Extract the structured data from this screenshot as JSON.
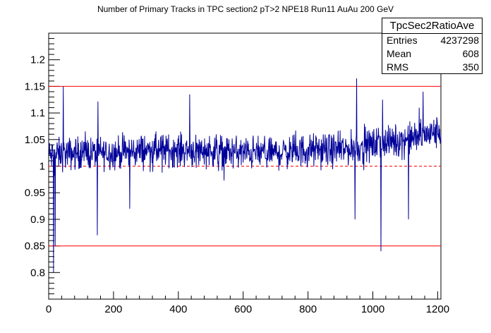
{
  "chart_data": {
    "type": "line",
    "title": "Number of Primary Tracks in TPC section2 pT>2 NPE18 Run11 AuAu 200 GeV",
    "xlabel": "",
    "ylabel": "",
    "xlim": [
      0,
      1210
    ],
    "ylim": [
      0.75,
      1.25
    ],
    "xticks": [
      0,
      200,
      400,
      600,
      800,
      1000,
      1200
    ],
    "xtick_labels": [
      "0",
      "200",
      "400",
      "600",
      "800",
      "1000",
      "1200"
    ],
    "yticks": [
      0.8,
      0.85,
      0.9,
      0.95,
      1.0,
      1.05,
      1.1,
      1.15,
      1.2
    ],
    "ytick_labels": [
      "0.8",
      "0.85",
      "0.9",
      "0.95",
      "1",
      "1.05",
      "1.1",
      "1.15",
      "1.2"
    ],
    "reference_lines": [
      {
        "y": 1.15,
        "style": "solid",
        "color": "#ff0000"
      },
      {
        "y": 0.85,
        "style": "solid",
        "color": "#ff0000"
      },
      {
        "y": 1.0,
        "style": "dashed",
        "color": "#ff0000"
      }
    ],
    "series": [
      {
        "color": "#000099",
        "trend_x": [
          0,
          100,
          200,
          300,
          400,
          500,
          600,
          700,
          800,
          900,
          1000,
          1100,
          1210
        ],
        "trend_y": [
          1.02,
          1.025,
          1.025,
          1.03,
          1.03,
          1.03,
          1.025,
          1.025,
          1.03,
          1.03,
          1.04,
          1.05,
          1.065
        ],
        "spread": 0.015,
        "spikes": [
          {
            "x": 15,
            "y": 0.8
          },
          {
            "x": 20,
            "y": 0.85
          },
          {
            "x": 45,
            "y": 1.15
          },
          {
            "x": 150,
            "y": 0.87
          },
          {
            "x": 250,
            "y": 0.92
          },
          {
            "x": 435,
            "y": 1.135
          },
          {
            "x": 945,
            "y": 0.9
          },
          {
            "x": 950,
            "y": 1.165
          },
          {
            "x": 1025,
            "y": 0.84
          },
          {
            "x": 1030,
            "y": 1.125
          },
          {
            "x": 1110,
            "y": 0.9
          },
          {
            "x": 1155,
            "y": 1.14
          }
        ]
      }
    ],
    "grid": false,
    "legend": "top-right"
  },
  "stats_box": {
    "name": "TpcSec2RatioAve",
    "rows": [
      {
        "label": "Entries",
        "value": "4237298"
      },
      {
        "label": "Mean",
        "value": "608"
      },
      {
        "label": "RMS",
        "value": "350"
      }
    ]
  }
}
